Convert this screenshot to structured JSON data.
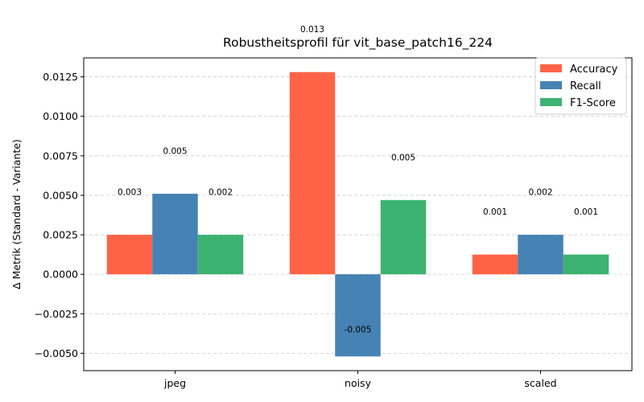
{
  "chart_data": {
    "type": "bar",
    "title": "Robustheitsprofil für vit_base_patch16_224",
    "xlabel": "",
    "ylabel": "Δ Metrik (Standard - Variante)",
    "categories": [
      "jpeg",
      "noisy",
      "scaled"
    ],
    "series": [
      {
        "name": "Accuracy",
        "color": "#ff6347",
        "values": [
          0.0025,
          0.0128,
          0.00125
        ]
      },
      {
        "name": "Recall",
        "color": "#4682b4",
        "values": [
          0.0051,
          -0.0052,
          0.0025
        ]
      },
      {
        "name": "F1-Score",
        "color": "#3cb371",
        "values": [
          0.0025,
          0.0047,
          0.00125
        ]
      }
    ],
    "data_labels": [
      [
        "0.003",
        "0.005",
        "0.002"
      ],
      [
        "0.013",
        "-0.005",
        "0.005"
      ],
      [
        "0.001",
        "0.002",
        "0.001"
      ]
    ],
    "ylim": [
      -0.0061,
      0.0137
    ],
    "yticks": [
      -0.005,
      -0.0025,
      0,
      0.0025,
      0.005,
      0.0075,
      0.01,
      0.0125
    ],
    "ytick_labels": [
      "−0.0050",
      "−0.0025",
      "0.0000",
      "0.0025",
      "0.0050",
      "0.0075",
      "0.0100",
      "0.0125"
    ],
    "grid": true,
    "legend_position": "top-right"
  }
}
